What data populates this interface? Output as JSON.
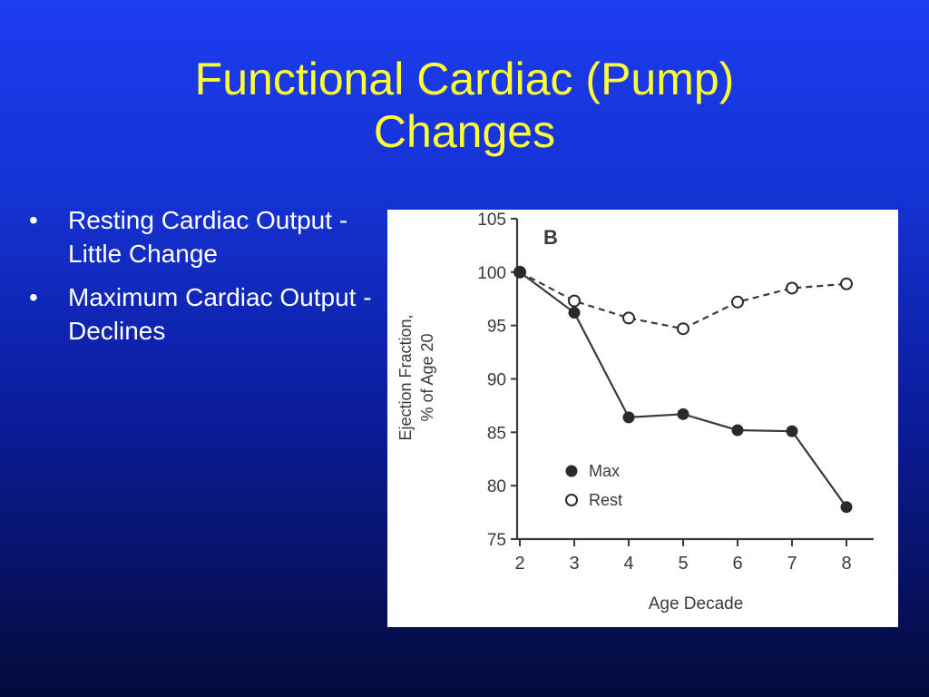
{
  "slide": {
    "title_line1": "Functional Cardiac  (Pump)",
    "title_line2": "Changes",
    "bullets": [
      {
        "marker": "•",
        "text": "Resting Cardiac Output -  Little Change"
      },
      {
        "marker": "•",
        "text": "Maximum Cardiac Output - Declines"
      }
    ]
  },
  "chart_data": {
    "type": "line",
    "panel_label": "B",
    "xlabel": "Age Decade",
    "ylabel_line1": "Ejection Fraction,",
    "ylabel_line2": "% of Age 20",
    "x": [
      2,
      3,
      4,
      5,
      6,
      7,
      8
    ],
    "xlim": [
      1.95,
      8.5
    ],
    "ylim": [
      75,
      105
    ],
    "yticks": [
      75,
      80,
      85,
      90,
      95,
      100,
      105
    ],
    "legend_position": "bottom-left",
    "series": [
      {
        "name": "Max",
        "marker": "filled",
        "line": "solid",
        "values": [
          100,
          96.2,
          86.4,
          86.7,
          85.2,
          85.1,
          78.0
        ]
      },
      {
        "name": "Rest",
        "marker": "open",
        "line": "dashed",
        "values": [
          100,
          97.3,
          95.7,
          94.7,
          97.2,
          98.5,
          98.9
        ]
      }
    ],
    "colors": {
      "line": "#3a3a3a",
      "marker": "#2a2a2a"
    }
  }
}
